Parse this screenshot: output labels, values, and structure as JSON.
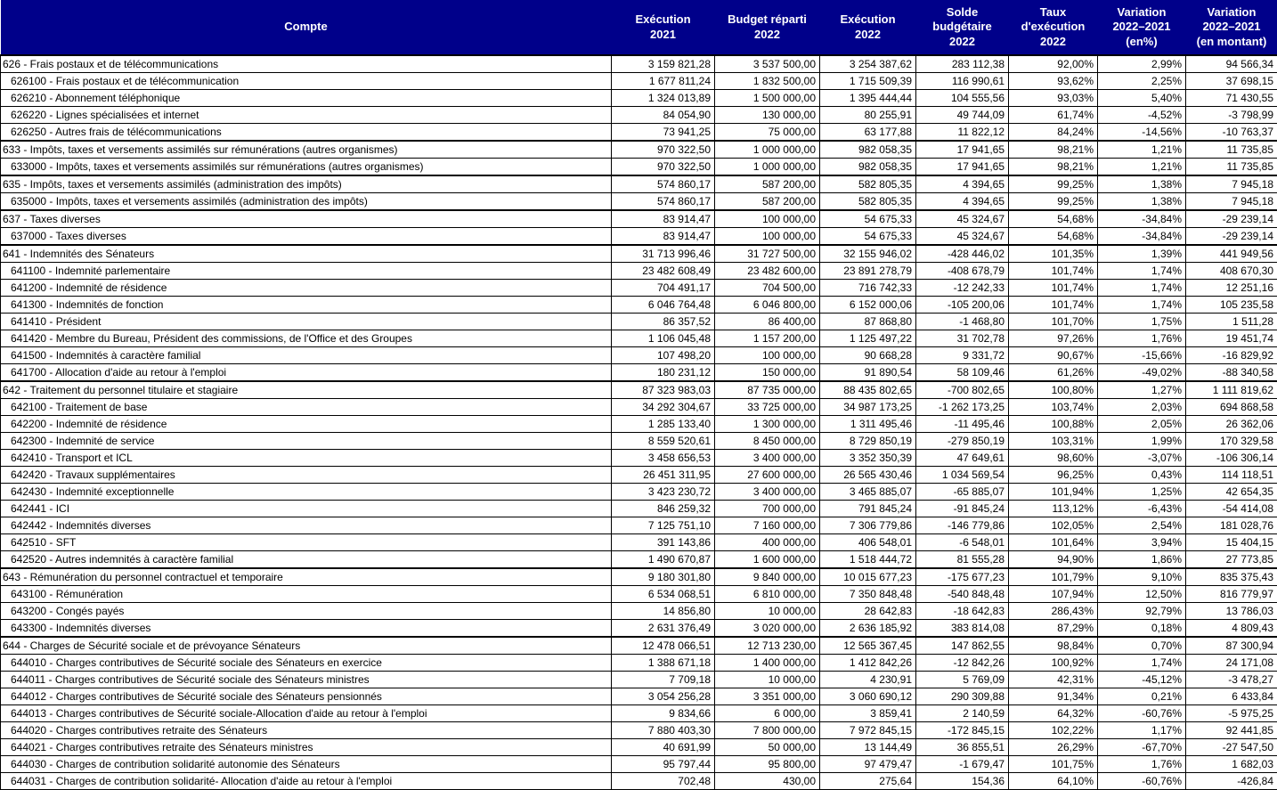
{
  "table": {
    "header_bg": "#00008a",
    "header_text_color": "#ffffff",
    "columns": [
      "Compte",
      "Exécution\n2021",
      "Budget réparti\n2022",
      "Exécution\n2022",
      "Solde\nbudgétaire\n2022",
      "Taux\nd'exécution\n2022",
      "Variation\n2022–2021\n(en%)",
      "Variation\n2022–2021\n(en montant)"
    ],
    "rows": [
      {
        "level": 0,
        "cells": [
          "626 - Frais postaux et de télécommunications",
          "3 159 821,28",
          "3 537 500,00",
          "3 254 387,62",
          "283 112,38",
          "92,00%",
          "2,99%",
          "94 566,34"
        ]
      },
      {
        "level": 1,
        "cells": [
          "626100 - Frais postaux et de télécommunication",
          "1 677 811,24",
          "1 832 500,00",
          "1 715 509,39",
          "116 990,61",
          "93,62%",
          "2,25%",
          "37 698,15"
        ]
      },
      {
        "level": 1,
        "cells": [
          "626210 - Abonnement téléphonique",
          "1 324 013,89",
          "1 500 000,00",
          "1 395 444,44",
          "104 555,56",
          "93,03%",
          "5,40%",
          "71 430,55"
        ]
      },
      {
        "level": 1,
        "cells": [
          "626220 - Lignes spécialisées et internet",
          "84 054,90",
          "130 000,00",
          "80 255,91",
          "49 744,09",
          "61,74%",
          "-4,52%",
          "-3 798,99"
        ]
      },
      {
        "level": 1,
        "cells": [
          "626250 - Autres frais de télécommunications",
          "73 941,25",
          "75 000,00",
          "63 177,88",
          "11 822,12",
          "84,24%",
          "-14,56%",
          "-10 763,37"
        ]
      },
      {
        "level": 0,
        "cells": [
          "633 - Impôts, taxes et versements assimilés sur rémunérations (autres organismes)",
          "970 322,50",
          "1 000 000,00",
          "982 058,35",
          "17 941,65",
          "98,21%",
          "1,21%",
          "11 735,85"
        ]
      },
      {
        "level": 1,
        "cells": [
          "633000 - Impôts, taxes et versements assimilés sur rémunérations (autres organismes)",
          "970 322,50",
          "1 000 000,00",
          "982 058,35",
          "17 941,65",
          "98,21%",
          "1,21%",
          "11 735,85"
        ]
      },
      {
        "level": 0,
        "cells": [
          "635 - Impôts, taxes et versements assimilés (administration des impôts)",
          "574 860,17",
          "587 200,00",
          "582 805,35",
          "4 394,65",
          "99,25%",
          "1,38%",
          "7 945,18"
        ]
      },
      {
        "level": 1,
        "cells": [
          "635000 - Impôts, taxes et versements assimilés (administration des impôts)",
          "574 860,17",
          "587 200,00",
          "582 805,35",
          "4 394,65",
          "99,25%",
          "1,38%",
          "7 945,18"
        ]
      },
      {
        "level": 0,
        "cells": [
          "637 - Taxes diverses",
          "83 914,47",
          "100 000,00",
          "54 675,33",
          "45 324,67",
          "54,68%",
          "-34,84%",
          "-29 239,14"
        ]
      },
      {
        "level": 1,
        "cells": [
          "637000 - Taxes diverses",
          "83 914,47",
          "100 000,00",
          "54 675,33",
          "45 324,67",
          "54,68%",
          "-34,84%",
          "-29 239,14"
        ]
      },
      {
        "level": 0,
        "cells": [
          "641 - Indemnités des Sénateurs",
          "31 713 996,46",
          "31 727 500,00",
          "32 155 946,02",
          "-428 446,02",
          "101,35%",
          "1,39%",
          "441 949,56"
        ]
      },
      {
        "level": 1,
        "cells": [
          "641100 - Indemnité parlementaire",
          "23 482 608,49",
          "23 482 600,00",
          "23 891 278,79",
          "-408 678,79",
          "101,74%",
          "1,74%",
          "408 670,30"
        ]
      },
      {
        "level": 1,
        "cells": [
          "641200 - Indemnité de résidence",
          "704 491,17",
          "704 500,00",
          "716 742,33",
          "-12 242,33",
          "101,74%",
          "1,74%",
          "12 251,16"
        ]
      },
      {
        "level": 1,
        "cells": [
          "641300 - Indemnités de fonction",
          "6 046 764,48",
          "6 046 800,00",
          "6 152 000,06",
          "-105 200,06",
          "101,74%",
          "1,74%",
          "105 235,58"
        ]
      },
      {
        "level": 1,
        "cells": [
          "641410 - Président",
          "86 357,52",
          "86 400,00",
          "87 868,80",
          "-1 468,80",
          "101,70%",
          "1,75%",
          "1 511,28"
        ]
      },
      {
        "level": 1,
        "cells": [
          "641420 - Membre du Bureau, Président des commissions, de l'Office et des Groupes",
          "1 106 045,48",
          "1 157 200,00",
          "1 125 497,22",
          "31 702,78",
          "97,26%",
          "1,76%",
          "19 451,74"
        ]
      },
      {
        "level": 1,
        "cells": [
          "641500 - Indemnités à caractère familial",
          "107 498,20",
          "100 000,00",
          "90 668,28",
          "9 331,72",
          "90,67%",
          "-15,66%",
          "-16 829,92"
        ]
      },
      {
        "level": 1,
        "cells": [
          "641700 - Allocation d'aide au retour à l'emploi",
          "180 231,12",
          "150 000,00",
          "91 890,54",
          "58 109,46",
          "61,26%",
          "-49,02%",
          "-88 340,58"
        ]
      },
      {
        "level": 0,
        "cells": [
          "642 - Traitement du personnel titulaire et stagiaire",
          "87 323 983,03",
          "87 735 000,00",
          "88 435 802,65",
          "-700 802,65",
          "100,80%",
          "1,27%",
          "1 111 819,62"
        ]
      },
      {
        "level": 1,
        "cells": [
          "642100 - Traitement de base",
          "34 292 304,67",
          "33 725 000,00",
          "34 987 173,25",
          "-1 262 173,25",
          "103,74%",
          "2,03%",
          "694 868,58"
        ]
      },
      {
        "level": 1,
        "cells": [
          "642200 - Indemnité de résidence",
          "1 285 133,40",
          "1 300 000,00",
          "1 311 495,46",
          "-11 495,46",
          "100,88%",
          "2,05%",
          "26 362,06"
        ]
      },
      {
        "level": 1,
        "cells": [
          "642300 - Indemnité de service",
          "8 559 520,61",
          "8 450 000,00",
          "8 729 850,19",
          "-279 850,19",
          "103,31%",
          "1,99%",
          "170 329,58"
        ]
      },
      {
        "level": 1,
        "cells": [
          "642410 - Transport et ICL",
          "3 458 656,53",
          "3 400 000,00",
          "3 352 350,39",
          "47 649,61",
          "98,60%",
          "-3,07%",
          "-106 306,14"
        ]
      },
      {
        "level": 1,
        "cells": [
          "642420 - Travaux supplémentaires",
          "26 451 311,95",
          "27 600 000,00",
          "26 565 430,46",
          "1 034 569,54",
          "96,25%",
          "0,43%",
          "114 118,51"
        ]
      },
      {
        "level": 1,
        "cells": [
          "642430 - Indemnité exceptionnelle",
          "3 423 230,72",
          "3 400 000,00",
          "3 465 885,07",
          "-65 885,07",
          "101,94%",
          "1,25%",
          "42 654,35"
        ]
      },
      {
        "level": 1,
        "cells": [
          "642441 - ICI",
          "846 259,32",
          "700 000,00",
          "791 845,24",
          "-91 845,24",
          "113,12%",
          "-6,43%",
          "-54 414,08"
        ]
      },
      {
        "level": 1,
        "cells": [
          "642442 - Indemnités diverses",
          "7 125 751,10",
          "7 160 000,00",
          "7 306 779,86",
          "-146 779,86",
          "102,05%",
          "2,54%",
          "181 028,76"
        ]
      },
      {
        "level": 1,
        "cells": [
          "642510 - SFT",
          "391 143,86",
          "400 000,00",
          "406 548,01",
          "-6 548,01",
          "101,64%",
          "3,94%",
          "15 404,15"
        ]
      },
      {
        "level": 1,
        "cells": [
          "642520 - Autres indemnités à caractère familial",
          "1 490 670,87",
          "1 600 000,00",
          "1 518 444,72",
          "81 555,28",
          "94,90%",
          "1,86%",
          "27 773,85"
        ]
      },
      {
        "level": 0,
        "cells": [
          "643 - Rémunération du personnel contractuel et temporaire",
          "9 180 301,80",
          "9 840 000,00",
          "10 015 677,23",
          "-175 677,23",
          "101,79%",
          "9,10%",
          "835 375,43"
        ]
      },
      {
        "level": 1,
        "cells": [
          "643100 - Rémunération",
          "6 534 068,51",
          "6 810 000,00",
          "7 350 848,48",
          "-540 848,48",
          "107,94%",
          "12,50%",
          "816 779,97"
        ]
      },
      {
        "level": 1,
        "cells": [
          "643200 - Congés payés",
          "14 856,80",
          "10 000,00",
          "28 642,83",
          "-18 642,83",
          "286,43%",
          "92,79%",
          "13 786,03"
        ]
      },
      {
        "level": 1,
        "cells": [
          "643300 - Indemnités diverses",
          "2 631 376,49",
          "3 020 000,00",
          "2 636 185,92",
          "383 814,08",
          "87,29%",
          "0,18%",
          "4 809,43"
        ]
      },
      {
        "level": 0,
        "cells": [
          "644 - Charges de Sécurité sociale et de prévoyance Sénateurs",
          "12 478 066,51",
          "12 713 230,00",
          "12 565 367,45",
          "147 862,55",
          "98,84%",
          "0,70%",
          "87 300,94"
        ]
      },
      {
        "level": 1,
        "cells": [
          "644010 - Charges contributives de Sécurité sociale des Sénateurs en exercice",
          "1 388 671,18",
          "1 400 000,00",
          "1 412 842,26",
          "-12 842,26",
          "100,92%",
          "1,74%",
          "24 171,08"
        ]
      },
      {
        "level": 1,
        "cells": [
          "644011 - Charges contributives de Sécurité sociale des Sénateurs ministres",
          "7 709,18",
          "10 000,00",
          "4 230,91",
          "5 769,09",
          "42,31%",
          "-45,12%",
          "-3 478,27"
        ]
      },
      {
        "level": 1,
        "cells": [
          "644012 - Charges contributives de Sécurité sociale des Sénateurs pensionnés",
          "3 054 256,28",
          "3 351 000,00",
          "3 060 690,12",
          "290 309,88",
          "91,34%",
          "0,21%",
          "6 433,84"
        ]
      },
      {
        "level": 1,
        "cells": [
          "644013 - Charges contributives de Sécurité sociale-Allocation d'aide au retour à l'emploi",
          "9 834,66",
          "6 000,00",
          "3 859,41",
          "2 140,59",
          "64,32%",
          "-60,76%",
          "-5 975,25"
        ]
      },
      {
        "level": 1,
        "cells": [
          "644020 - Charges contributives retraite des Sénateurs",
          "7 880 403,30",
          "7 800 000,00",
          "7 972 845,15",
          "-172 845,15",
          "102,22%",
          "1,17%",
          "92 441,85"
        ]
      },
      {
        "level": 1,
        "cells": [
          "644021 - Charges contributives retraite des Sénateurs ministres",
          "40 691,99",
          "50 000,00",
          "13 144,49",
          "36 855,51",
          "26,29%",
          "-67,70%",
          "-27 547,50"
        ]
      },
      {
        "level": 1,
        "cells": [
          "644030 - Charges de contribution solidarité autonomie des Sénateurs",
          "95 797,44",
          "95 800,00",
          "97 479,47",
          "-1 679,47",
          "101,75%",
          "1,76%",
          "1 682,03"
        ]
      },
      {
        "level": 1,
        "cells": [
          "644031 - Charges de contribution solidarité- Allocation d'aide au retour à l'emploi",
          "702,48",
          "430,00",
          "275,64",
          "154,36",
          "64,10%",
          "-60,76%",
          "-426,84"
        ]
      }
    ]
  }
}
